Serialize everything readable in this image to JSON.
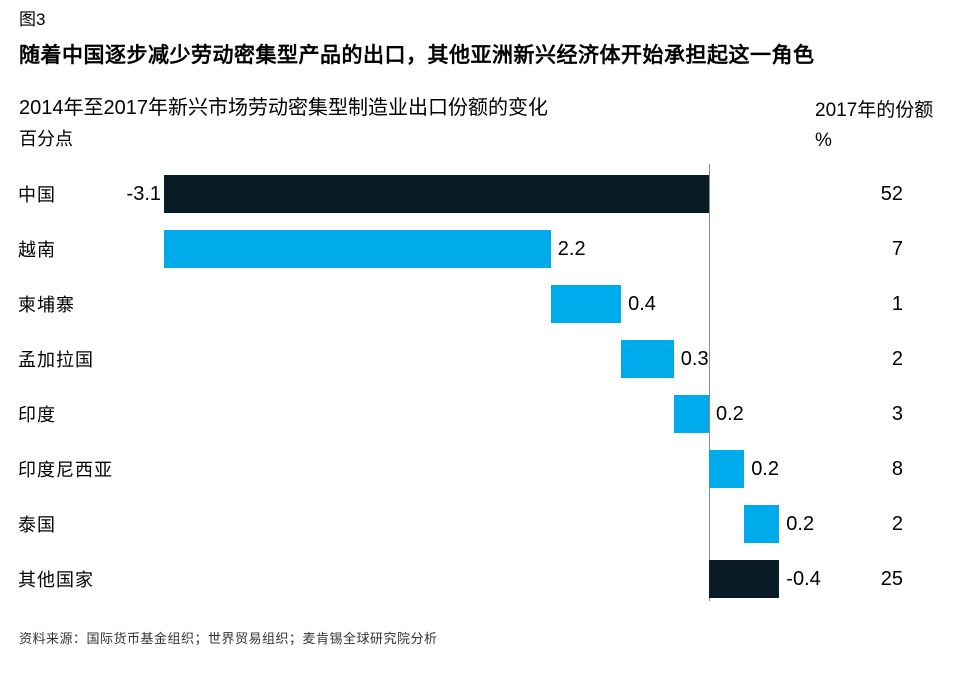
{
  "figure_label": "图3",
  "title": "随着中国逐步减少劳动密集型产品的出口，其他亚洲新兴经济体开始承担起这一角色",
  "source": "资料来源：国际货币基金组织；世界贸易组织；麦肯锡全球研究院分析",
  "chart_data": {
    "type": "bar",
    "subtype": "horizontal-waterfall",
    "title": "随着中国逐步减少劳动密集型产品的出口，其他亚洲新兴经济体开始承担起这一角色",
    "subtitle": "2014年至2017年新兴市场劳动密集型制造业出口份额的变化",
    "unit_label": "百分点",
    "share_header": "2017年的份额",
    "share_unit": "%",
    "categories": [
      "中国",
      "越南",
      "柬埔寨",
      "孟加拉国",
      "印度",
      "印度尼西亚",
      "泰国",
      "其他国家"
    ],
    "values": [
      -3.1,
      2.2,
      0.4,
      0.3,
      0.2,
      0.2,
      0.2,
      -0.4
    ],
    "value_labels": [
      "-3.1",
      "2.2",
      "0.4",
      "0.3",
      "0.2",
      "0.2",
      "0.2",
      "-0.4"
    ],
    "share_2017": [
      52,
      7,
      1,
      2,
      3,
      8,
      2,
      25
    ],
    "label_side": [
      "left",
      "right",
      "right",
      "right",
      "right",
      "right",
      "right",
      "right"
    ],
    "xlim": [
      -3.45,
      1.43
    ],
    "grid": false,
    "legend": null,
    "colors": {
      "negative_bar": "#0a1b28",
      "positive_bar": "#00abeb",
      "axis_line": "#8a8a8a",
      "text": "#000000"
    }
  }
}
